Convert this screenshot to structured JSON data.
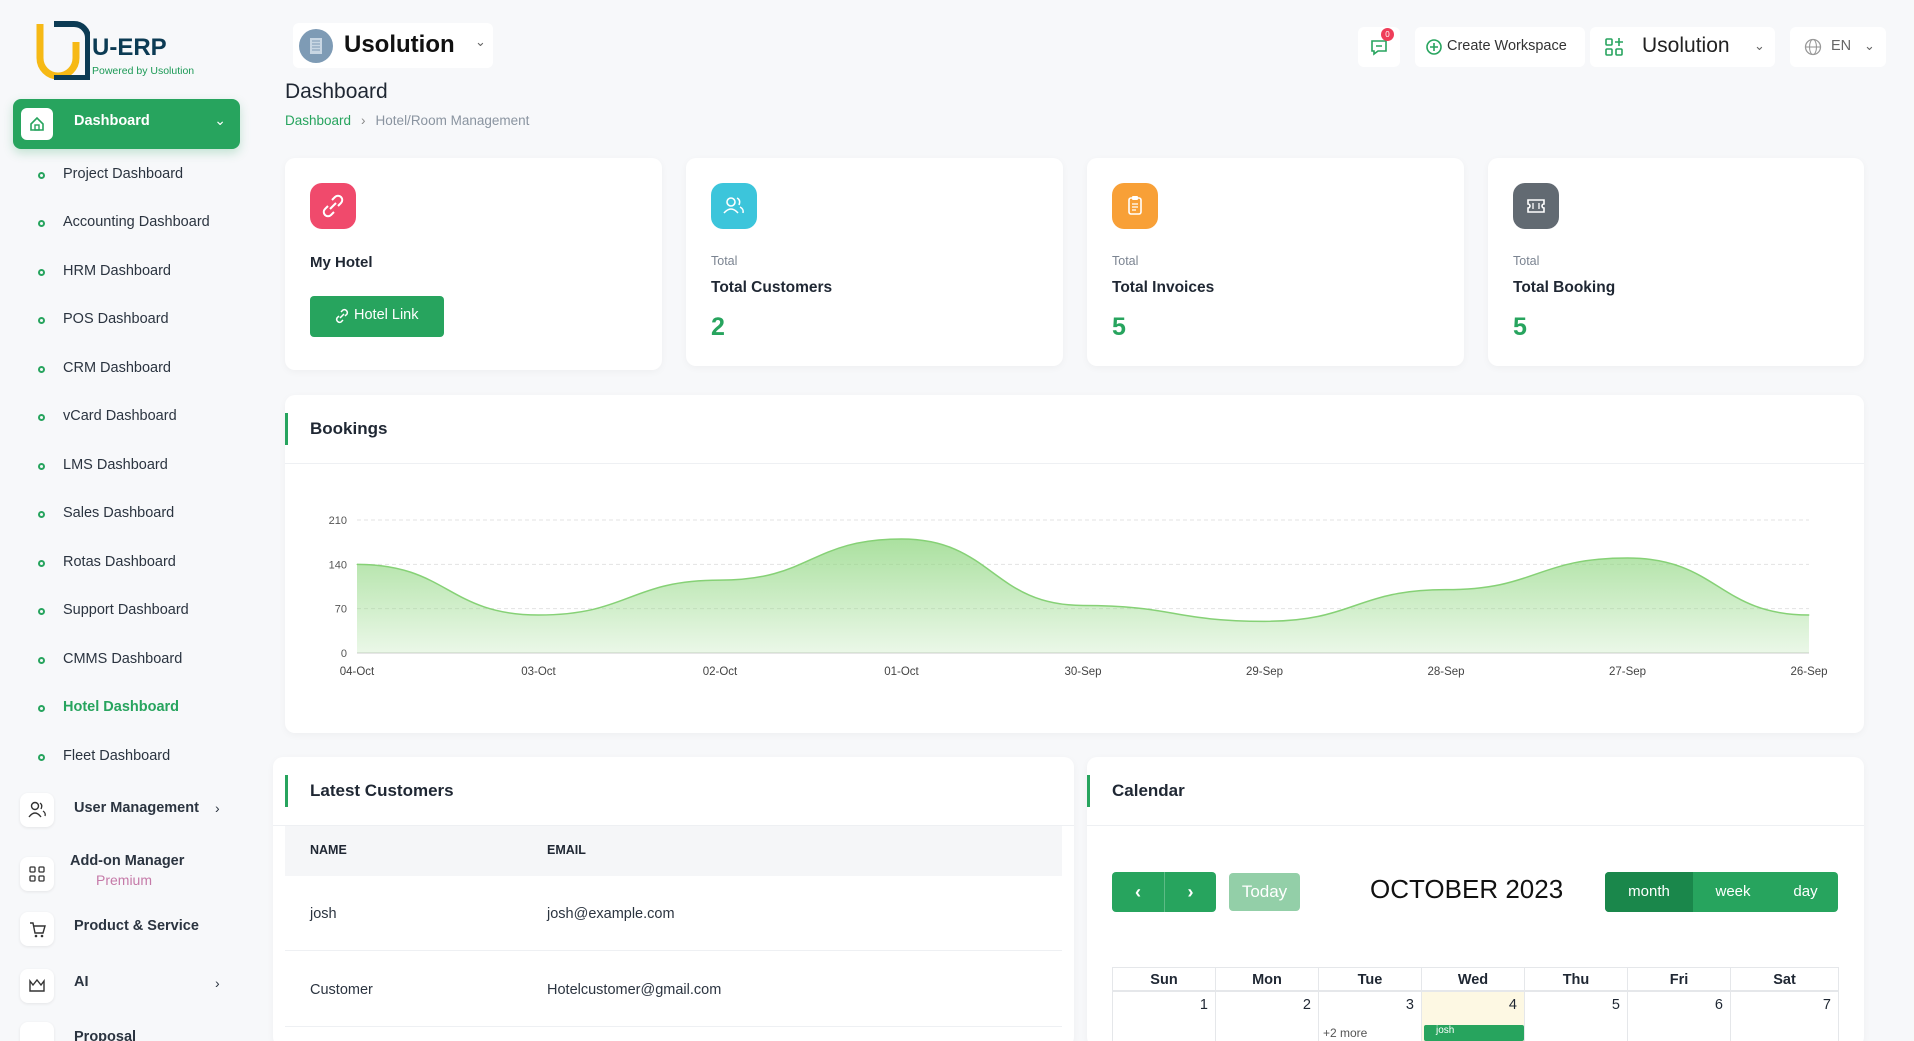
{
  "brand": {
    "name": "U-ERP",
    "tagline": "Powered by Usolution"
  },
  "sidebar": {
    "active_group": "Dashboard",
    "dashboards": [
      "Project Dashboard",
      "Accounting Dashboard",
      "HRM Dashboard",
      "POS Dashboard",
      "CRM Dashboard",
      "vCard Dashboard",
      "LMS Dashboard",
      "Sales Dashboard",
      "Rotas Dashboard",
      "Support Dashboard",
      "CMMS Dashboard",
      "Hotel Dashboard",
      "Fleet Dashboard"
    ],
    "active_dashboard": "Hotel Dashboard",
    "groups": [
      {
        "label": "User Management",
        "icon": "users-icon"
      },
      {
        "label": "Add-on Manager",
        "icon": "addon-grid-icon",
        "badge": "Premium"
      },
      {
        "label": "Product & Service",
        "icon": "cart-icon"
      },
      {
        "label": "AI",
        "icon": "ai-icon"
      },
      {
        "label": "Proposal",
        "icon": "proposal-icon"
      }
    ]
  },
  "header": {
    "workspace": "Usolution",
    "notifications": "0",
    "create_workspace": "Create Workspace",
    "company": "Usolution",
    "language": "EN"
  },
  "page": {
    "title": "Dashboard",
    "breadcrumb": [
      "Dashboard",
      "Hotel/Room Management"
    ]
  },
  "cards": {
    "hotel": {
      "title": "My Hotel",
      "button": "Hotel Link",
      "color": "#f04a6c"
    },
    "customers": {
      "small": "Total",
      "title": "Total Customers",
      "value": "2",
      "color": "#3cc5db"
    },
    "invoices": {
      "small": "Total",
      "title": "Total Invoices",
      "value": "5",
      "color": "#f8a037"
    },
    "booking": {
      "small": "Total",
      "title": "Total Booking",
      "value": "5",
      "color": "#626a72"
    }
  },
  "bookings": {
    "title": "Bookings"
  },
  "chart_data": {
    "type": "area",
    "title": "Bookings",
    "x": [
      "04-Oct",
      "03-Oct",
      "02-Oct",
      "01-Oct",
      "30-Sep",
      "29-Sep",
      "28-Sep",
      "27-Sep",
      "26-Sep"
    ],
    "series": [
      {
        "values": [
          140,
          60,
          115,
          180,
          75,
          50,
          100,
          150,
          60
        ]
      }
    ],
    "yticks": [
      0,
      70,
      140,
      210
    ],
    "ylim": [
      0,
      210
    ],
    "grid": true,
    "color": "#8ed67f"
  },
  "customers": {
    "title": "Latest Customers",
    "columns": [
      "NAME",
      "EMAIL"
    ],
    "rows": [
      {
        "name": "josh",
        "email": "josh@example.com"
      },
      {
        "name": "Customer",
        "email": "Hotelcustomer@gmail.com"
      }
    ]
  },
  "calendar": {
    "title": "Calendar",
    "today_label": "Today",
    "month_label": "OCTOBER 2023",
    "views": [
      "month",
      "week",
      "day"
    ],
    "weekdays": [
      "Sun",
      "Mon",
      "Tue",
      "Wed",
      "Thu",
      "Fri",
      "Sat"
    ],
    "week1": [
      "1",
      "2",
      "3",
      "4",
      "5",
      "6",
      "7"
    ],
    "more_label": "+2 more",
    "event_label": "josh",
    "accent": "#27a45e"
  }
}
